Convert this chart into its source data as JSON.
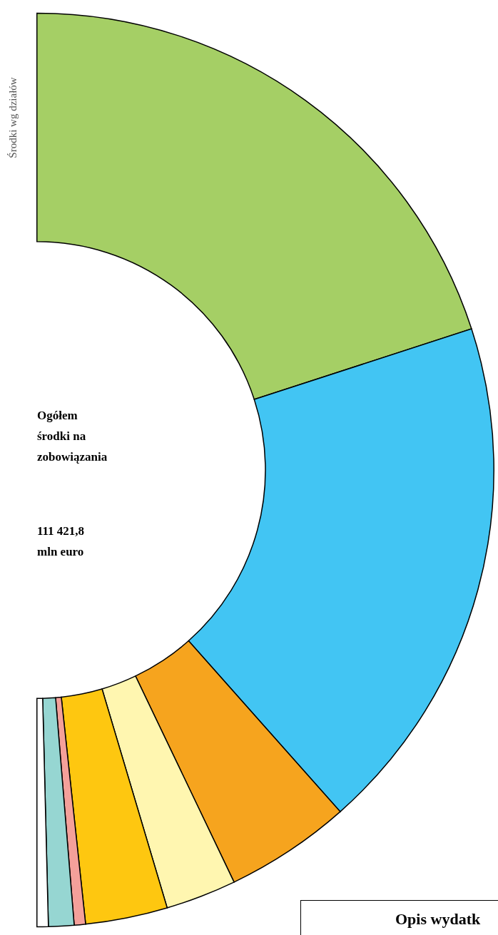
{
  "chart_data": {
    "type": "donut",
    "title": "Środki wg działów",
    "categories": [
      null,
      null,
      null,
      null,
      null,
      null,
      null,
      null
    ],
    "values": [
      40.0,
      36.9,
      8.9,
      5.0,
      5.8,
      0.8,
      1.8,
      0.8
    ],
    "colors": [
      "#a5cf65",
      "#42c5f3",
      "#f6a41e",
      "#fff6b0",
      "#fec710",
      "#f4a09a",
      "#96d6d2",
      "#ffffff"
    ],
    "legend": false,
    "annotations": [
      "Ogółem środki na zobowiązania",
      "111 421,8 mln euro",
      "Opis wydatk"
    ]
  }
}
